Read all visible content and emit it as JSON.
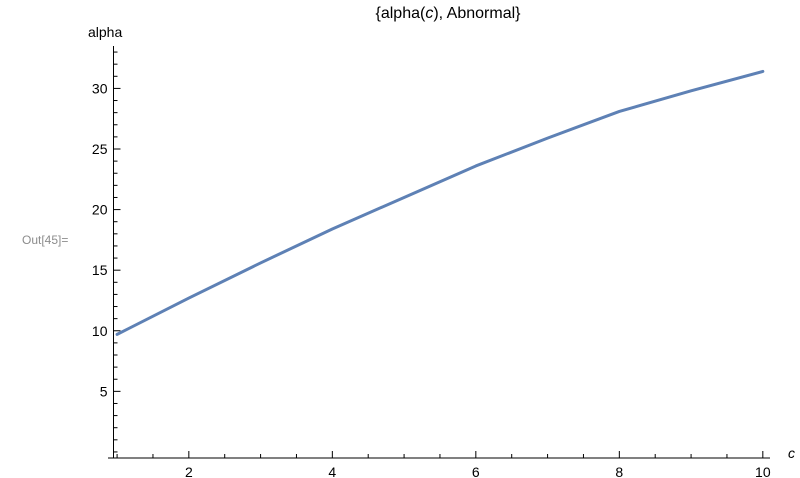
{
  "cell_label": "Out[45]=",
  "chart_data": {
    "type": "line",
    "title_parts": [
      "{alpha(",
      "c",
      "), Abnormal}"
    ],
    "xlabel": "c",
    "ylabel": "alpha",
    "xlim": [
      0.95,
      10.1
    ],
    "ylim": [
      -0.5,
      33.5
    ],
    "xticks": [
      2,
      4,
      6,
      8,
      10
    ],
    "yticks": [
      5,
      10,
      15,
      20,
      25,
      30
    ],
    "x_minor_step": 0.5,
    "y_minor_step": 1,
    "grid": false,
    "line_color": "#5e81b5",
    "series": [
      {
        "x": [
          1,
          2,
          3,
          4,
          5,
          6,
          7,
          8,
          9,
          10
        ],
        "values": [
          9.7,
          12.7,
          15.6,
          18.4,
          21.0,
          23.6,
          25.9,
          28.1,
          29.8,
          31.4
        ]
      }
    ]
  }
}
